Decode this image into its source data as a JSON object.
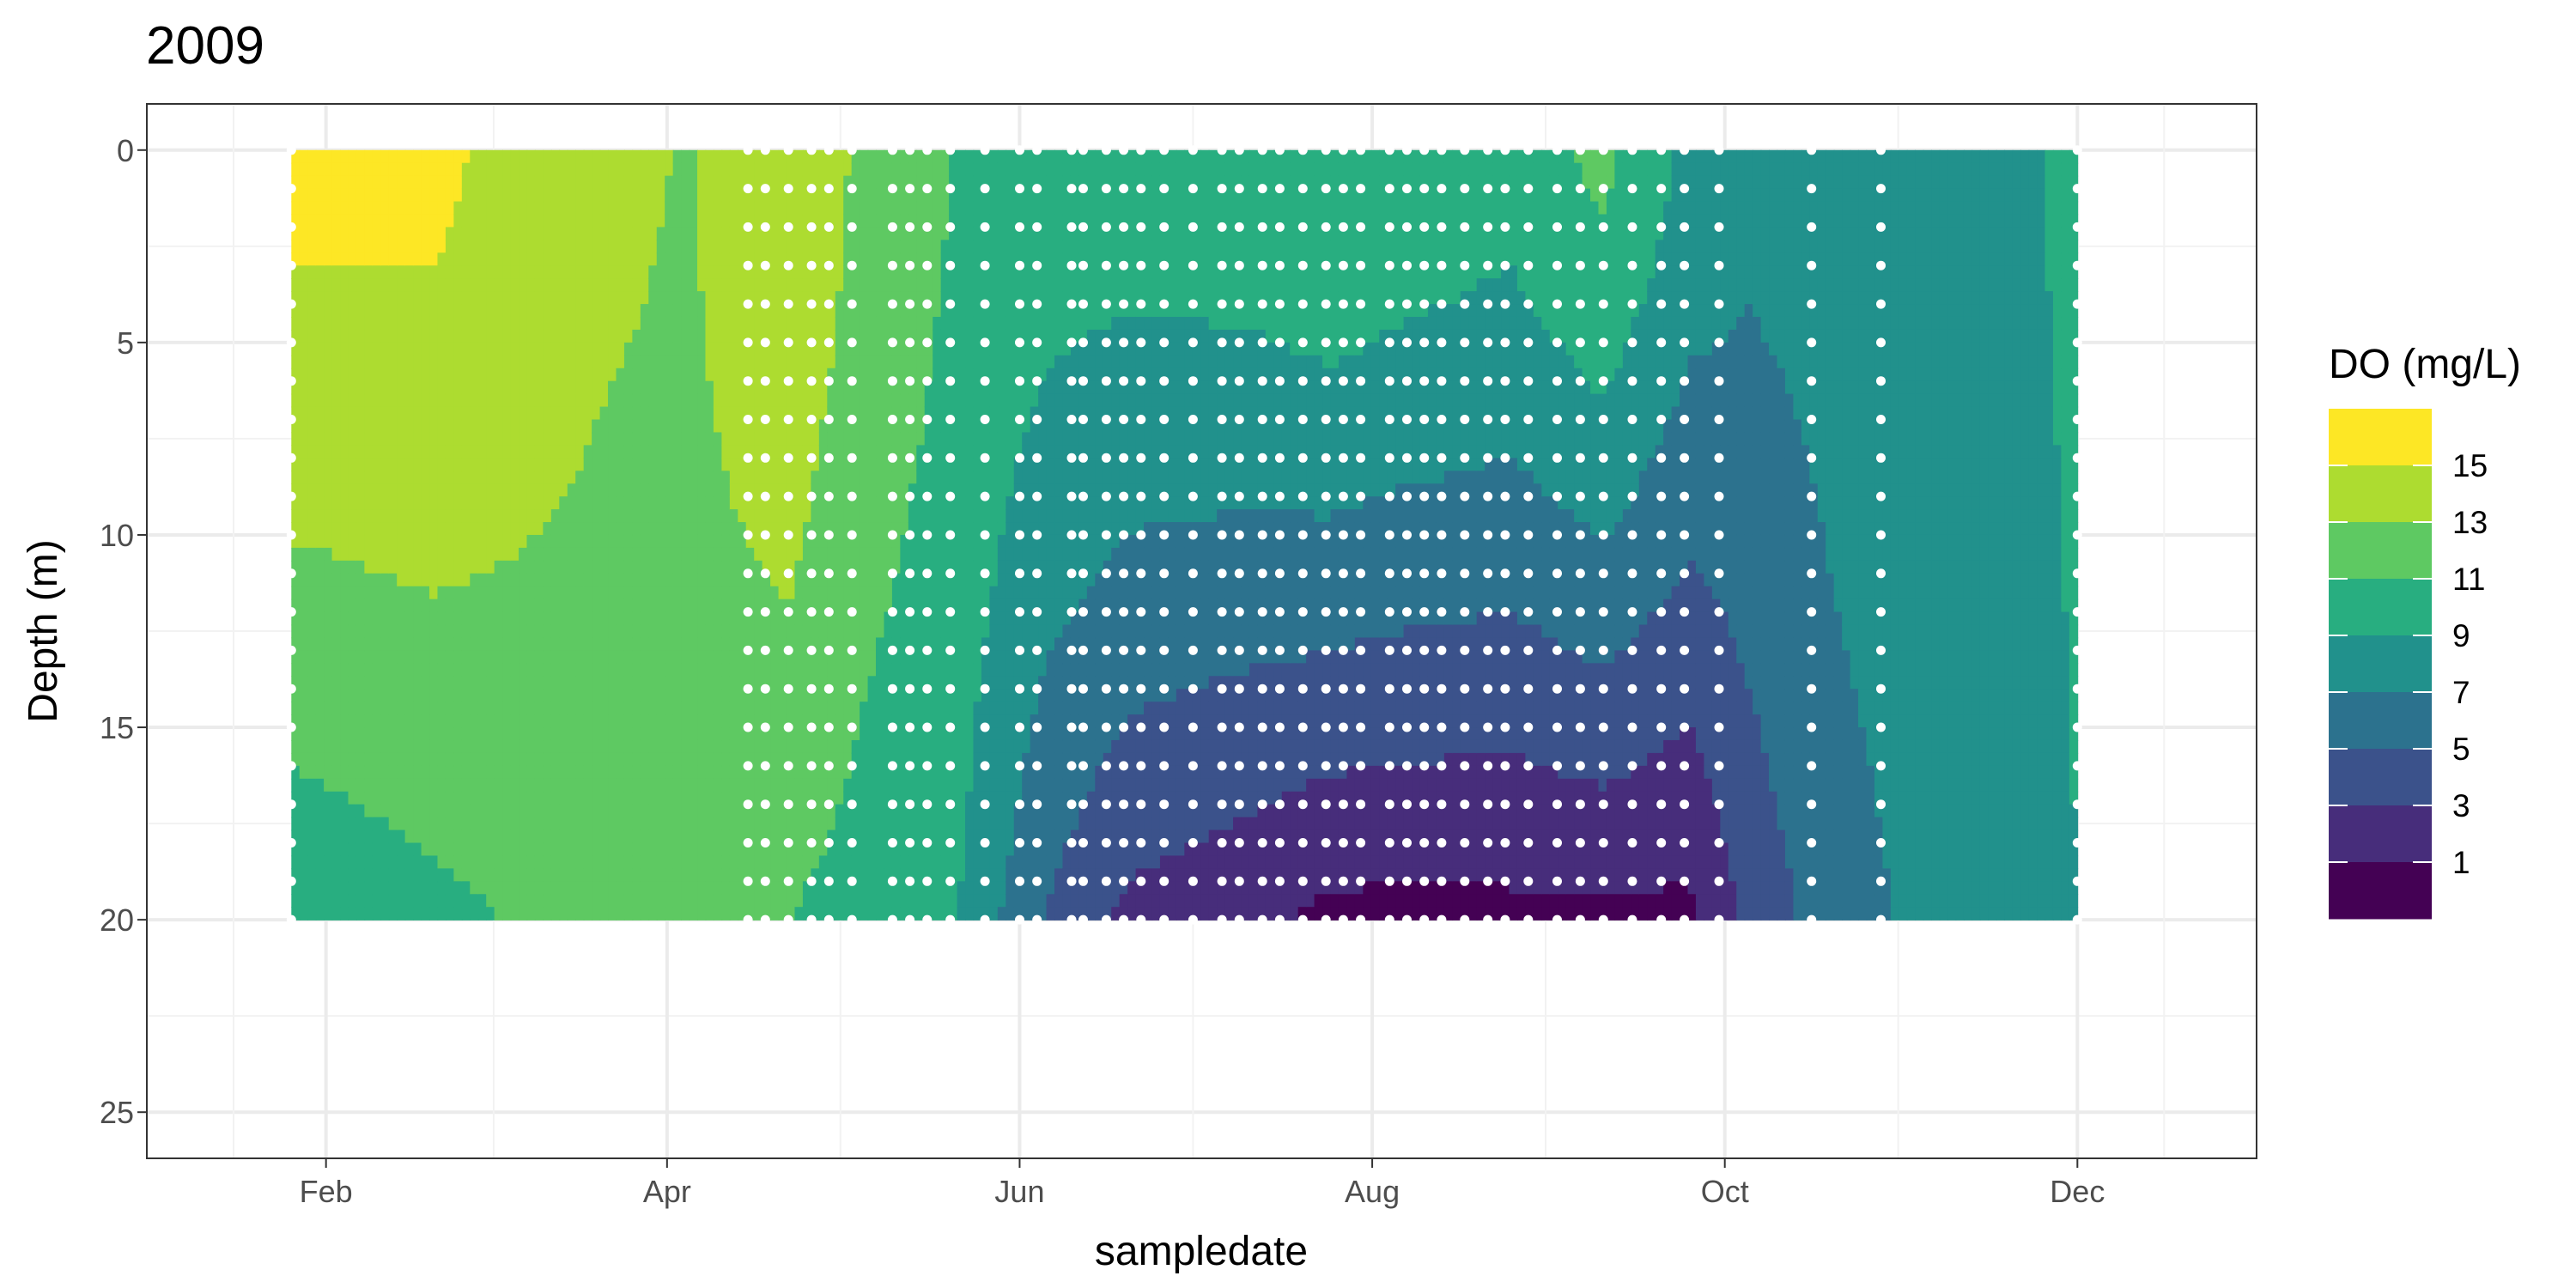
{
  "chart_data": {
    "type": "heatmap",
    "title": "2009",
    "xlabel": "sampledate",
    "ylabel": "Depth (m)",
    "x_axis": {
      "type": "date",
      "range": [
        "2009-01-01",
        "2010-01-01"
      ],
      "ticks": [
        {
          "date": "2009-02-01",
          "label": "Feb"
        },
        {
          "date": "2009-04-01",
          "label": "Apr"
        },
        {
          "date": "2009-06-01",
          "label": "Jun"
        },
        {
          "date": "2009-08-01",
          "label": "Aug"
        },
        {
          "date": "2009-10-01",
          "label": "Oct"
        },
        {
          "date": "2009-12-01",
          "label": "Dec"
        }
      ]
    },
    "y_axis": {
      "reversed": true,
      "range": [
        -1.2,
        26.2
      ],
      "ticks": [
        0,
        5,
        10,
        15,
        20,
        25
      ],
      "tick_labels": [
        "0",
        "5",
        "10",
        "15",
        "20",
        "25"
      ]
    },
    "grid": true,
    "legend": {
      "title": "DO (mg/L)",
      "placement": "right",
      "breaks": [
        15,
        13,
        11,
        9,
        7,
        5,
        3,
        1
      ],
      "bin_colors_top_to_bottom": [
        "#FDE725",
        "#ADDC30",
        "#5EC962",
        "#28AE80",
        "#21918C",
        "#2C728E",
        "#3B528B",
        "#472D7B",
        "#440154"
      ]
    },
    "depths": [
      0,
      1,
      2,
      3,
      4,
      5,
      6,
      7,
      8,
      9,
      10,
      11,
      12,
      13,
      14,
      15,
      16,
      17,
      18,
      19,
      20
    ],
    "profiles": [
      {
        "date": "2009-01-26",
        "surface": 15.5,
        "bottom": 9.5
      },
      {
        "date": "2009-02-20",
        "surface": 15.4,
        "bottom": 10.5
      },
      {
        "date": "2009-03-20",
        "surface": 13.4,
        "bottom": 11.8
      },
      {
        "date": "2009-04-05",
        "surface": 12.9,
        "bottom": 12.0
      },
      {
        "date": "2009-04-22",
        "surface": 15.0,
        "bottom": 11.0
      },
      {
        "date": "2009-05-05",
        "surface": 12.5,
        "bottom": 10.2
      },
      {
        "date": "2009-05-20",
        "surface": 11.0,
        "bottom": 9.4
      },
      {
        "date": "2009-06-05",
        "surface": 10.0,
        "bottom": 5.0
      },
      {
        "date": "2009-06-20",
        "surface": 10.0,
        "bottom": 2.5
      },
      {
        "date": "2009-07-10",
        "surface": 10.3,
        "bottom": 1.5
      },
      {
        "date": "2009-07-25",
        "surface": 11.0,
        "bottom": 0.5
      },
      {
        "date": "2009-08-05",
        "surface": 10.5,
        "bottom": 0.4
      },
      {
        "date": "2009-08-25",
        "surface": 9.8,
        "bottom": 0.5
      },
      {
        "date": "2009-09-10",
        "surface": 11.5,
        "bottom": 0.6
      },
      {
        "date": "2009-09-25",
        "surface": 8.5,
        "bottom": 0.5
      },
      {
        "date": "2009-10-05",
        "surface": 7.5,
        "bottom": 3.5
      },
      {
        "date": "2009-10-20",
        "surface": 7.8,
        "bottom": 6.2
      },
      {
        "date": "2009-11-10",
        "surface": 8.5,
        "bottom": 7.8
      },
      {
        "date": "2009-12-01",
        "surface": 9.2,
        "bottom": 9.0
      }
    ],
    "sample_dates": [
      "2009-01-26",
      "2009-04-15",
      "2009-04-18",
      "2009-04-22",
      "2009-04-26",
      "2009-04-29",
      "2009-05-03",
      "2009-05-10",
      "2009-05-13",
      "2009-05-16",
      "2009-05-20",
      "2009-05-26",
      "2009-06-01",
      "2009-06-04",
      "2009-06-10",
      "2009-06-12",
      "2009-06-16",
      "2009-06-19",
      "2009-06-22",
      "2009-06-26",
      "2009-07-01",
      "2009-07-06",
      "2009-07-09",
      "2009-07-13",
      "2009-07-16",
      "2009-07-20",
      "2009-07-24",
      "2009-07-27",
      "2009-07-30",
      "2009-08-04",
      "2009-08-07",
      "2009-08-10",
      "2009-08-13",
      "2009-08-17",
      "2009-08-21",
      "2009-08-24",
      "2009-08-28",
      "2009-09-02",
      "2009-09-06",
      "2009-09-10",
      "2009-09-15",
      "2009-09-20",
      "2009-09-24",
      "2009-09-30",
      "2009-10-16",
      "2009-10-28",
      "2009-12-01"
    ]
  }
}
